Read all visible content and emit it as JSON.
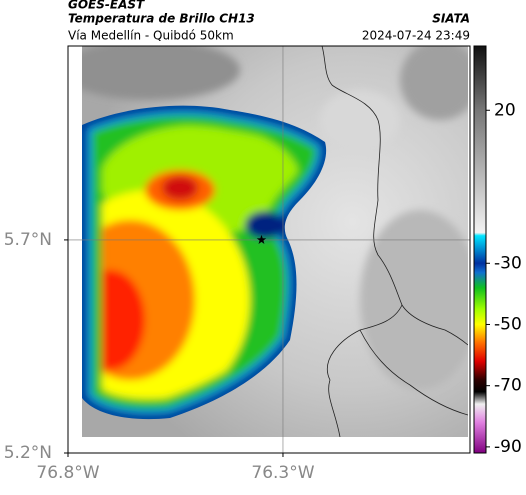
{
  "header": {
    "title": "GOES-EAST",
    "subtitle": "Temperatura de Brillo CH13",
    "source": "SIATA",
    "location": "Vía Medellín - Quibdó 50km",
    "timestamp": "2024-07-24 23:49"
  },
  "chart_data": {
    "type": "map",
    "xlim": [
      -76.8,
      -75.865
    ],
    "ylim": [
      5.2,
      6.155
    ],
    "xticks": [
      {
        "value": -76.8,
        "label": "76.8°W"
      },
      {
        "value": -76.3,
        "label": "76.3°W"
      }
    ],
    "yticks": [
      {
        "value": 5.2,
        "label": "5.2°N"
      },
      {
        "value": 5.7,
        "label": "5.7°N"
      }
    ],
    "grid": true,
    "marker": {
      "x": -76.35,
      "y": 5.7
    },
    "colorbar": {
      "lim": [
        -92,
        41
      ],
      "ticks": [
        20,
        -30,
        -50,
        -70,
        -90
      ],
      "colormap": [
        {
          "value": 41,
          "color": "#111111"
        },
        {
          "value": 20,
          "color": "#777777"
        },
        {
          "value": -20,
          "color": "#f2f2f2"
        },
        {
          "value": -21,
          "color": "#00e5ff"
        },
        {
          "value": -30,
          "color": "#0030a0"
        },
        {
          "value": -33,
          "color": "#1070d0"
        },
        {
          "value": -38,
          "color": "#10c020"
        },
        {
          "value": -45,
          "color": "#a0ff00"
        },
        {
          "value": -50,
          "color": "#ffff00"
        },
        {
          "value": -56,
          "color": "#ff7000"
        },
        {
          "value": -62,
          "color": "#e00000"
        },
        {
          "value": -68,
          "color": "#300000"
        },
        {
          "value": -72,
          "color": "#000000"
        },
        {
          "value": -76,
          "color": "#f0f0f0"
        },
        {
          "value": -82,
          "color": "#e080e0"
        },
        {
          "value": -92,
          "color": "#800080"
        }
      ]
    }
  }
}
